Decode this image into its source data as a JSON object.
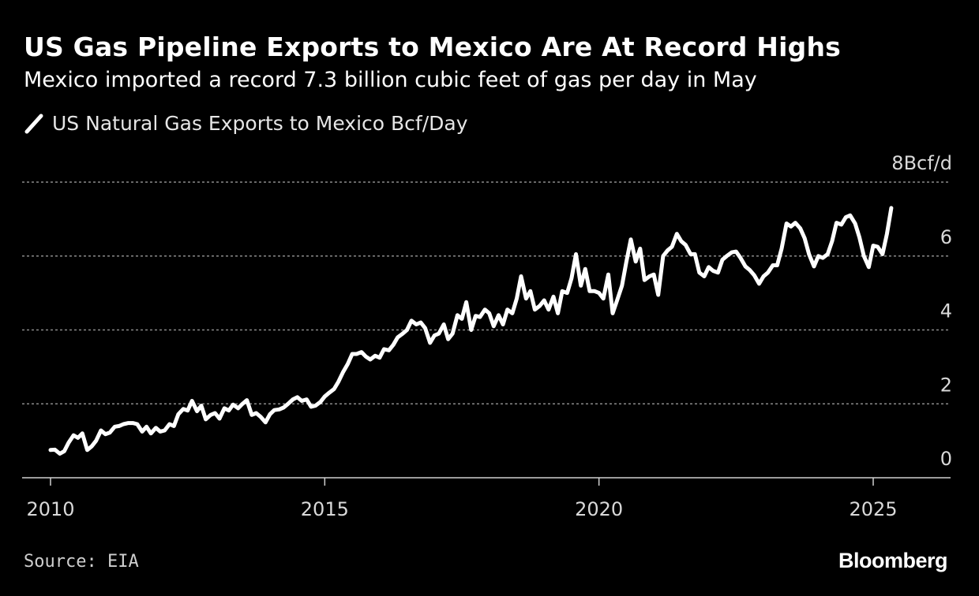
{
  "title": "US Gas Pipeline Exports to Mexico Are At Record Highs",
  "subtitle": "Mexico imported a record 7.3 billion cubic feet of gas per day in May",
  "source": "Source: EIA",
  "brand": "Bloomberg",
  "colors": {
    "background": "#000000",
    "line": "#ffffff",
    "grid": "#8a8a8a",
    "text": "#d9d9d9"
  },
  "chart_data": {
    "type": "line",
    "title": "US Gas Pipeline Exports to Mexico Are At Record Highs",
    "xlabel": "",
    "ylabel": "",
    "xlim": [
      2010,
      2026.4
    ],
    "ylim": [
      0,
      8
    ],
    "y_ticks": [
      {
        "value": 0,
        "label": "0"
      },
      {
        "value": 2,
        "label": "2"
      },
      {
        "value": 4,
        "label": "4"
      },
      {
        "value": 6,
        "label": "6"
      },
      {
        "value": 8,
        "label": "8Bcf/d"
      }
    ],
    "x_ticks": [
      {
        "value": 2010,
        "label": "2010"
      },
      {
        "value": 2015,
        "label": "2015"
      },
      {
        "value": 2020,
        "label": "2020"
      },
      {
        "value": 2025,
        "label": "2025"
      }
    ],
    "grid": "horizontal dotted",
    "series": [
      {
        "name": "US Natural Gas Exports to Mexico Bcf/Day",
        "x": [
          2010.0,
          2010.08,
          2010.17,
          2010.25,
          2010.33,
          2010.42,
          2010.5,
          2010.58,
          2010.67,
          2010.75,
          2010.83,
          2010.92,
          2011.0,
          2011.08,
          2011.17,
          2011.25,
          2011.33,
          2011.42,
          2011.5,
          2011.58,
          2011.67,
          2011.75,
          2011.83,
          2011.92,
          2012.0,
          2012.08,
          2012.17,
          2012.25,
          2012.33,
          2012.42,
          2012.5,
          2012.58,
          2012.67,
          2012.75,
          2012.83,
          2012.92,
          2013.0,
          2013.08,
          2013.17,
          2013.25,
          2013.33,
          2013.42,
          2013.5,
          2013.58,
          2013.67,
          2013.75,
          2013.83,
          2013.92,
          2014.0,
          2014.08,
          2014.17,
          2014.25,
          2014.33,
          2014.42,
          2014.5,
          2014.58,
          2014.67,
          2014.75,
          2014.83,
          2014.92,
          2015.0,
          2015.08,
          2015.17,
          2015.25,
          2015.33,
          2015.42,
          2015.5,
          2015.58,
          2015.67,
          2015.75,
          2015.83,
          2015.92,
          2016.0,
          2016.08,
          2016.17,
          2016.25,
          2016.33,
          2016.42,
          2016.5,
          2016.58,
          2016.67,
          2016.75,
          2016.83,
          2016.92,
          2017.0,
          2017.08,
          2017.17,
          2017.25,
          2017.33,
          2017.42,
          2017.5,
          2017.58,
          2017.67,
          2017.75,
          2017.83,
          2017.92,
          2018.0,
          2018.08,
          2018.17,
          2018.25,
          2018.33,
          2018.42,
          2018.5,
          2018.58,
          2018.67,
          2018.75,
          2018.83,
          2018.92,
          2019.0,
          2019.08,
          2019.17,
          2019.25,
          2019.33,
          2019.42,
          2019.5,
          2019.58,
          2019.67,
          2019.75,
          2019.83,
          2019.92,
          2020.0,
          2020.08,
          2020.17,
          2020.25,
          2020.33,
          2020.42,
          2020.5,
          2020.58,
          2020.67,
          2020.75,
          2020.83,
          2020.92,
          2021.0,
          2021.08,
          2021.17,
          2021.25,
          2021.33,
          2021.42,
          2021.5,
          2021.58,
          2021.67,
          2021.75,
          2021.83,
          2021.92,
          2022.0,
          2022.08,
          2022.17,
          2022.25,
          2022.33,
          2022.42,
          2022.5,
          2022.58,
          2022.67,
          2022.75,
          2022.83,
          2022.92,
          2023.0,
          2023.08,
          2023.17,
          2023.25,
          2023.33,
          2023.42,
          2023.5,
          2023.58,
          2023.67,
          2023.75,
          2023.83,
          2023.92,
          2024.0,
          2024.08,
          2024.17,
          2024.25,
          2024.33,
          2024.42,
          2024.5,
          2024.58,
          2024.67,
          2024.75,
          2024.83,
          2024.92,
          2025.0,
          2025.08,
          2025.17,
          2025.25,
          2025.33
        ],
        "values": [
          0.75,
          0.76,
          0.65,
          0.72,
          0.95,
          1.15,
          1.08,
          1.2,
          0.75,
          0.85,
          1.0,
          1.28,
          1.18,
          1.22,
          1.38,
          1.4,
          1.45,
          1.48,
          1.48,
          1.45,
          1.25,
          1.38,
          1.2,
          1.35,
          1.25,
          1.28,
          1.45,
          1.4,
          1.72,
          1.86,
          1.82,
          2.08,
          1.8,
          1.95,
          1.58,
          1.7,
          1.75,
          1.6,
          1.88,
          1.82,
          1.98,
          1.88,
          2.0,
          2.1,
          1.7,
          1.75,
          1.65,
          1.5,
          1.72,
          1.83,
          1.85,
          1.9,
          2.0,
          2.12,
          2.18,
          2.08,
          2.12,
          1.92,
          1.95,
          2.05,
          2.2,
          2.3,
          2.4,
          2.6,
          2.85,
          3.08,
          3.35,
          3.35,
          3.4,
          3.28,
          3.2,
          3.3,
          3.25,
          3.48,
          3.45,
          3.6,
          3.8,
          3.9,
          4.0,
          4.25,
          4.15,
          4.2,
          4.05,
          3.65,
          3.85,
          3.9,
          4.15,
          3.75,
          3.9,
          4.4,
          4.3,
          4.75,
          4.0,
          4.38,
          4.35,
          4.55,
          4.45,
          4.1,
          4.4,
          4.15,
          4.55,
          4.45,
          4.85,
          5.45,
          4.85,
          5.05,
          4.55,
          4.65,
          4.8,
          4.55,
          4.9,
          4.45,
          5.05,
          5.0,
          5.4,
          6.05,
          5.2,
          5.65,
          5.05,
          5.05,
          5.0,
          4.85,
          5.5,
          4.45,
          4.8,
          5.2,
          5.85,
          6.45,
          5.85,
          6.2,
          5.35,
          5.45,
          5.5,
          4.95,
          6.0,
          6.15,
          6.25,
          6.6,
          6.4,
          6.3,
          6.05,
          6.05,
          5.55,
          5.45,
          5.7,
          5.6,
          5.55,
          5.9,
          6.0,
          6.1,
          6.12,
          5.95,
          5.72,
          5.62,
          5.48,
          5.25,
          5.45,
          5.55,
          5.75,
          5.75,
          6.2,
          6.88,
          6.8,
          6.9,
          6.75,
          6.48,
          6.05,
          5.72,
          6.0,
          5.95,
          6.05,
          6.4,
          6.9,
          6.85,
          7.05,
          7.1,
          6.88,
          6.5,
          6.0,
          5.7,
          6.28,
          6.25,
          6.05,
          6.6,
          7.3
        ]
      }
    ]
  }
}
